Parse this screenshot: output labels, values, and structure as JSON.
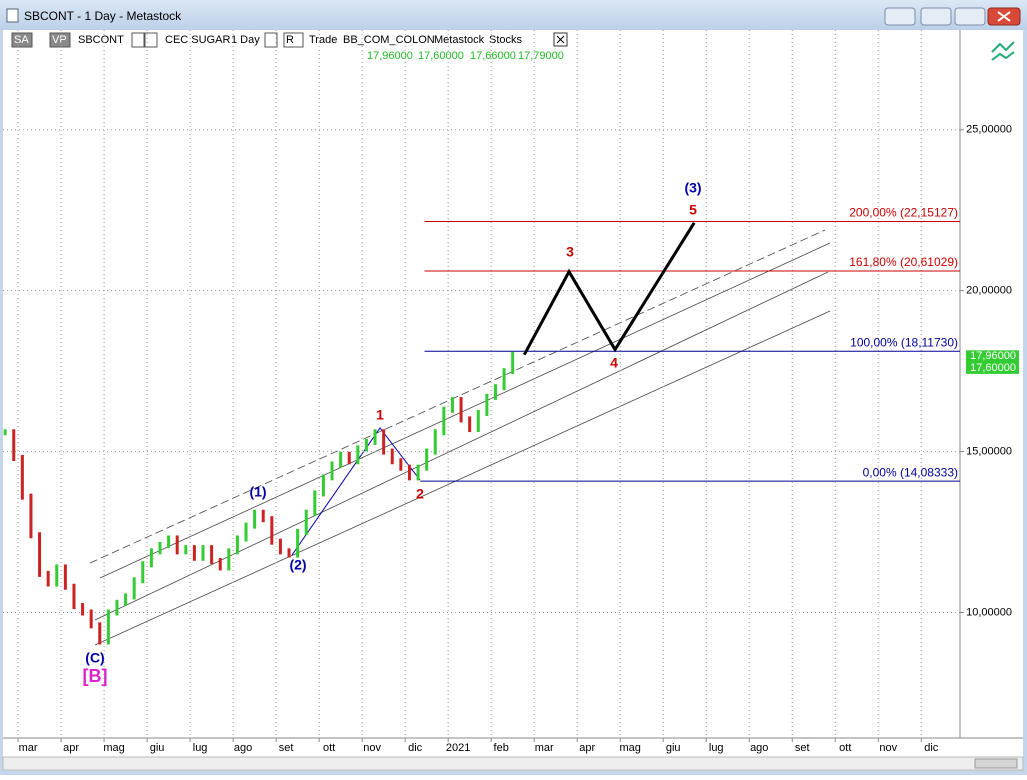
{
  "window": {
    "title": "SBCONT - 1 Day - Metastock",
    "toolbar": [
      "SA",
      "VP",
      "SBCONT",
      "CEC SUGAR",
      "1 Day",
      "R",
      "Trade",
      "BB_COM_COLON",
      "Metastock",
      "Stocks"
    ]
  },
  "chart_data": {
    "type": "bar",
    "ohlc": [
      {
        "value": 17.96,
        "label": "17,96000"
      },
      {
        "value": 17.6,
        "label": "17,60000"
      },
      {
        "value": 17.66,
        "label": "17,66000"
      },
      {
        "value": 17.79,
        "label": "17,79000"
      }
    ],
    "x": [
      -0.3,
      -0.1,
      0.1,
      0.3,
      0.5,
      0.7,
      0.9,
      1.1,
      1.3,
      1.5,
      1.7,
      1.9,
      2.1,
      2.3,
      2.5,
      2.7,
      2.9,
      3.1,
      3.3,
      3.5,
      3.7,
      3.9,
      4.1,
      4.3,
      4.5,
      4.7,
      4.9,
      5.1,
      5.3,
      5.5,
      5.7,
      5.9,
      6.1,
      6.3,
      6.5,
      6.7,
      6.9,
      7.1,
      7.3,
      7.5,
      7.7,
      7.9,
      8.1,
      8.3,
      8.5,
      8.7,
      8.9,
      9.1,
      9.3,
      9.5,
      9.7,
      9.9,
      10.1,
      10.3,
      10.5,
      10.7,
      10.9,
      11.1,
      11.3,
      11.5
    ],
    "values": [
      15.6,
      14.8,
      13.6,
      12.4,
      11.2,
      10.9,
      11.4,
      10.8,
      10.2,
      10.0,
      9.6,
      9.1,
      10.0,
      10.3,
      10.5,
      11.0,
      11.5,
      11.9,
      12.1,
      12.3,
      11.9,
      12.0,
      11.7,
      12.0,
      11.6,
      11.4,
      11.9,
      12.3,
      12.7,
      13.1,
      12.9,
      12.2,
      11.9,
      11.8,
      12.5,
      13.1,
      13.7,
      14.2,
      14.6,
      14.9,
      14.7,
      15.1,
      15.3,
      15.6,
      15.0,
      14.7,
      14.5,
      14.2,
      14.5,
      15.0,
      15.6,
      16.3,
      16.6,
      16.0,
      15.7,
      16.2,
      16.7,
      17.0,
      17.5,
      18.0
    ],
    "up_color": "#33cc33",
    "down_color": "#cc2222",
    "xlim": [
      -0.35,
      21.9
    ],
    "xticks": [
      {
        "value": 0,
        "label": "mar"
      },
      {
        "value": 1,
        "label": "apr"
      },
      {
        "value": 2,
        "label": "mag"
      },
      {
        "value": 3,
        "label": "giu"
      },
      {
        "value": 4,
        "label": "lug"
      },
      {
        "value": 5,
        "label": "ago"
      },
      {
        "value": 6,
        "label": "set"
      },
      {
        "value": 7,
        "label": "ott"
      },
      {
        "value": 8,
        "label": "nov"
      },
      {
        "value": 9,
        "label": "dic"
      },
      {
        "value": 10,
        "label": "2021"
      },
      {
        "value": 11,
        "label": "feb"
      },
      {
        "value": 12,
        "label": "mar"
      },
      {
        "value": 13,
        "label": "apr"
      },
      {
        "value": 14,
        "label": "mag"
      },
      {
        "value": 15,
        "label": "giu"
      },
      {
        "value": 16,
        "label": "lug"
      },
      {
        "value": 17,
        "label": "ago"
      },
      {
        "value": 18,
        "label": "set"
      },
      {
        "value": 19,
        "label": "ott"
      },
      {
        "value": 20,
        "label": "nov"
      },
      {
        "value": 21,
        "label": "dic"
      }
    ],
    "ylim": [
      6.1,
      28.1
    ],
    "yticks": [
      {
        "value": 10,
        "label": "10,00000"
      },
      {
        "value": 15,
        "label": "15,00000"
      },
      {
        "value": 20,
        "label": "20,00000"
      },
      {
        "value": 25,
        "label": "25,00000"
      }
    ],
    "grid": true,
    "levels": [
      {
        "value": 22.15127,
        "label": "200,00% (22,15127)",
        "color": "#cc0000",
        "from": 9.45
      },
      {
        "value": 20.61029,
        "label": "161,80% (20,61029)",
        "color": "#cc0000",
        "from": 9.45
      },
      {
        "value": 18.1173,
        "label": "100,00% (18,11730)",
        "color": "#000099",
        "from": 9.45
      },
      {
        "value": 14.08333,
        "label": "0,00% (14,08333)",
        "color": "#000099",
        "from": 9.35
      }
    ],
    "projection": {
      "x": [
        11.77,
        12.81,
        13.88,
        15.72
      ],
      "values": [
        18.01,
        20.59,
        18.17,
        22.11
      ],
      "color": "#000000"
    },
    "last_labels": [
      {
        "value": 17.96,
        "label": "17,96000"
      },
      {
        "value": 17.6,
        "label": "17,60000"
      }
    ],
    "annotations": [
      {
        "text": "(1)",
        "color": "#0000aa"
      },
      {
        "text": "(2)",
        "color": "#0000aa"
      },
      {
        "text": "1",
        "color": "#cc0000"
      },
      {
        "text": "2",
        "color": "#cc0000"
      },
      {
        "text": "3",
        "color": "#cc0000"
      },
      {
        "text": "4",
        "color": "#cc0000"
      },
      {
        "text": "5",
        "color": "#cc0000"
      },
      {
        "text": "(3)",
        "color": "#0000aa"
      },
      {
        "text": "(C)",
        "color": "#0000aa"
      },
      {
        "text": "[B]",
        "color": "#dd22cc"
      }
    ]
  }
}
